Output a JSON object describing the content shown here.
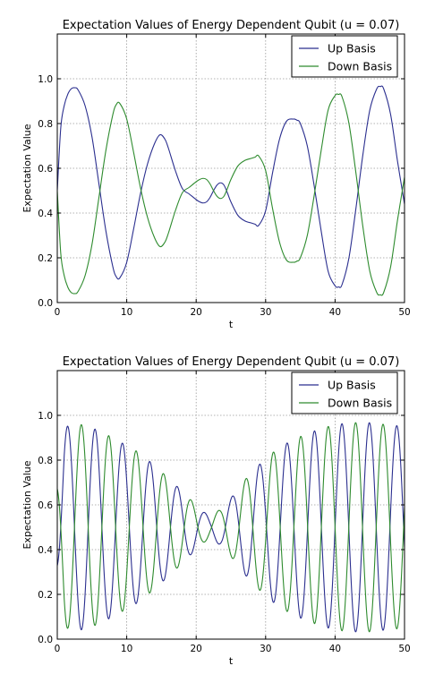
{
  "chart_data": [
    {
      "type": "line",
      "title": "Expectation Values of Energy Dependent Qubit (u = 0.07)",
      "xlabel": "t",
      "ylabel": "Expectation Value",
      "xlim": [
        0,
        50
      ],
      "ylim": [
        0,
        1.2
      ],
      "xticks": [
        "0",
        "10",
        "20",
        "30",
        "40",
        "50"
      ],
      "yticks": [
        "0.0",
        "0.2",
        "0.4",
        "0.6",
        "0.8",
        "1.0"
      ],
      "grid": true,
      "legend": "top-right",
      "series": [
        {
          "name": "Up Basis",
          "color": "#2b2f8f",
          "x": [
            0,
            0.5,
            1,
            1.5,
            2,
            2.5,
            3,
            4,
            5,
            6,
            7,
            8,
            8.5,
            9,
            10,
            11,
            12,
            13,
            14,
            14.8,
            15.5,
            16,
            17,
            18,
            19,
            20,
            20.5,
            21,
            21.5,
            22,
            22.5,
            23,
            23.5,
            24,
            24.5,
            25,
            26,
            27,
            28,
            28.5,
            29,
            30,
            31,
            32,
            33,
            34,
            34.5,
            35,
            36,
            37,
            38,
            39,
            40,
            40.5,
            41,
            42,
            43,
            44,
            45,
            46,
            46.5,
            47,
            48,
            49,
            50
          ],
          "values": [
            0.5,
            0.78,
            0.88,
            0.93,
            0.955,
            0.96,
            0.95,
            0.88,
            0.74,
            0.53,
            0.32,
            0.16,
            0.115,
            0.11,
            0.18,
            0.33,
            0.49,
            0.62,
            0.71,
            0.75,
            0.73,
            0.69,
            0.59,
            0.51,
            0.485,
            0.46,
            0.45,
            0.445,
            0.45,
            0.47,
            0.5,
            0.525,
            0.535,
            0.525,
            0.49,
            0.45,
            0.39,
            0.365,
            0.355,
            0.35,
            0.345,
            0.41,
            0.58,
            0.73,
            0.81,
            0.82,
            0.815,
            0.8,
            0.7,
            0.52,
            0.32,
            0.14,
            0.075,
            0.07,
            0.08,
            0.2,
            0.42,
            0.66,
            0.86,
            0.955,
            0.965,
            0.955,
            0.84,
            0.63,
            0.44
          ]
        },
        {
          "name": "Down Basis",
          "color": "#2e8b2e",
          "x": [
            0,
            0.5,
            1,
            1.5,
            2,
            2.5,
            3,
            4,
            5,
            6,
            7,
            8,
            8.5,
            9,
            10,
            11,
            12,
            13,
            14,
            14.8,
            15.5,
            16,
            17,
            18,
            19,
            20,
            20.5,
            21,
            21.5,
            22,
            22.5,
            23,
            23.5,
            24,
            24.5,
            25,
            26,
            27,
            28,
            28.5,
            29,
            30,
            31,
            32,
            33,
            34,
            34.5,
            35,
            36,
            37,
            38,
            39,
            40,
            40.5,
            41,
            42,
            43,
            44,
            45,
            46,
            46.5,
            47,
            48,
            49,
            50
          ],
          "values": [
            0.5,
            0.22,
            0.12,
            0.07,
            0.045,
            0.04,
            0.05,
            0.12,
            0.26,
            0.47,
            0.68,
            0.84,
            0.885,
            0.89,
            0.82,
            0.67,
            0.51,
            0.38,
            0.29,
            0.25,
            0.27,
            0.31,
            0.41,
            0.49,
            0.515,
            0.54,
            0.55,
            0.555,
            0.55,
            0.53,
            0.5,
            0.475,
            0.465,
            0.475,
            0.51,
            0.55,
            0.61,
            0.635,
            0.645,
            0.65,
            0.655,
            0.59,
            0.42,
            0.27,
            0.19,
            0.18,
            0.185,
            0.2,
            0.3,
            0.48,
            0.68,
            0.86,
            0.925,
            0.93,
            0.92,
            0.8,
            0.58,
            0.34,
            0.14,
            0.045,
            0.035,
            0.045,
            0.16,
            0.37,
            0.56
          ]
        }
      ]
    },
    {
      "type": "line",
      "title": "Expectation Values of Energy Dependent Qubit (u = 0.07)",
      "xlabel": "t",
      "ylabel": "Expectation Value",
      "xlim": [
        0,
        50
      ],
      "ylim": [
        0,
        1.2
      ],
      "xticks": [
        "0",
        "10",
        "20",
        "30",
        "40",
        "50"
      ],
      "yticks": [
        "0.0",
        "0.2",
        "0.4",
        "0.6",
        "0.8",
        "1.0"
      ],
      "grid": true,
      "legend": "top-right",
      "oscillation": {
        "period": 3.95,
        "phase_t": 0.5,
        "amplitude_t": [
          0,
          1,
          4,
          8,
          12,
          16,
          19,
          20.5,
          22,
          23.5,
          25,
          28,
          32,
          36,
          40,
          44,
          47,
          50
        ],
        "amplitude_values": [
          0.24,
          0.45,
          0.46,
          0.4,
          0.33,
          0.22,
          0.13,
          0.08,
          0.05,
          0.08,
          0.13,
          0.25,
          0.36,
          0.42,
          0.46,
          0.47,
          0.46,
          0.45
        ]
      },
      "series": [
        {
          "name": "Up Basis",
          "color": "#2b2f8f",
          "sign": 1
        },
        {
          "name": "Down Basis",
          "color": "#2e8b2e",
          "sign": -1
        }
      ]
    }
  ]
}
